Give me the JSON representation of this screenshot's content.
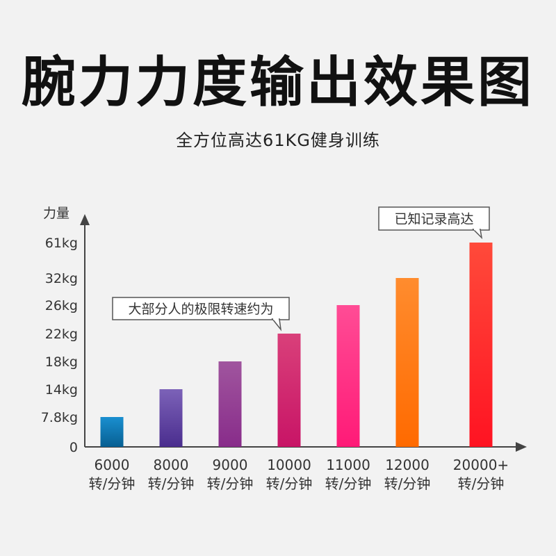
{
  "title": "腕力力度输出效果图",
  "subtitle": "全方位高达61KG健身训练",
  "colors": {
    "axis": "#444444",
    "background": "#f2f2f2"
  },
  "chart_data": {
    "type": "bar",
    "title": "腕力力度输出效果图",
    "subtitle": "全方位高达61KG健身训练",
    "ylabel": "力量",
    "xlabel": "",
    "y_ticks": [
      "0",
      "7.8kg",
      "14kg",
      "18kg",
      "22kg",
      "26kg",
      "32kg",
      "61kg"
    ],
    "y_tick_values": [
      0,
      7.8,
      14,
      18,
      22,
      26,
      32,
      61
    ],
    "categories": [
      {
        "line1": "6000",
        "line2": "转/分钟"
      },
      {
        "line1": "8000",
        "line2": "转/分钟"
      },
      {
        "line1": "9000",
        "line2": "转/分钟"
      },
      {
        "line1": "10000",
        "line2": "转/分钟"
      },
      {
        "line1": "11000",
        "line2": "转/分钟"
      },
      {
        "line1": "12000",
        "line2": "转/分钟"
      },
      {
        "line1": "20000+",
        "line2": "转/分钟"
      }
    ],
    "values": [
      7.8,
      14,
      18,
      22,
      26,
      32,
      61
    ],
    "bar_colors": [
      [
        "#1a8fd0",
        "#075f92"
      ],
      [
        "#7c62b8",
        "#4a2d8e"
      ],
      [
        "#a0559e",
        "#882c8a"
      ],
      [
        "#d9407a",
        "#c81466"
      ],
      [
        "#ff4c95",
        "#ff1a77"
      ],
      [
        "#ff8c2e",
        "#ff6a00"
      ],
      [
        "#ff4a3a",
        "#ff1322"
      ]
    ],
    "annotations": [
      {
        "text": "大部分人的极限转速约为",
        "category_index": 3
      },
      {
        "text": "已知记录高达",
        "category_index": 6
      }
    ],
    "grid": false,
    "legend": "none"
  }
}
